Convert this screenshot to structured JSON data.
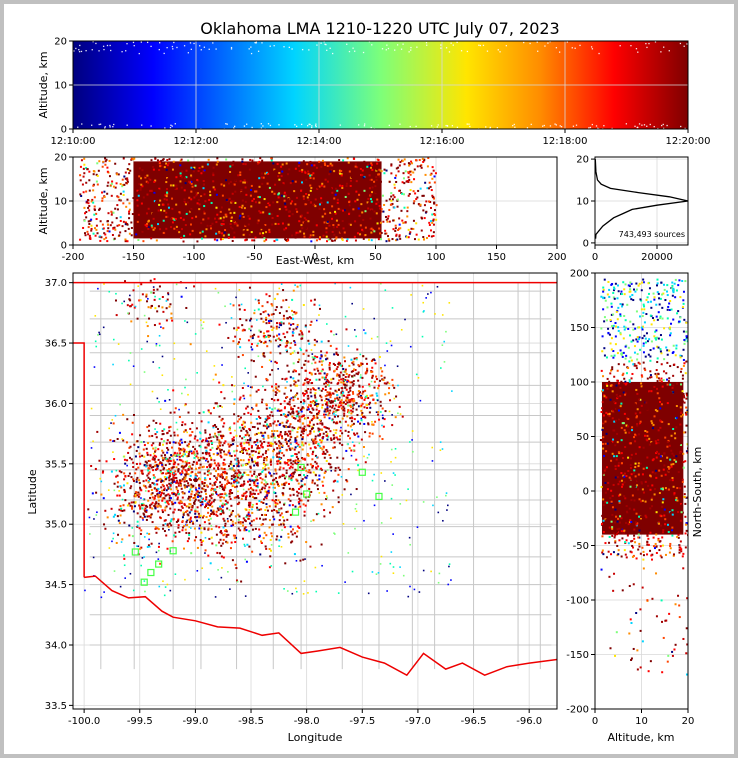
{
  "chart_data": [
    {
      "type": "scatter",
      "panel": "time-altitude",
      "title": "Oklahoma LMA 1210-1220 UTC July 07, 2023",
      "ylabel": "Altitude, km",
      "ylim": [
        0,
        20
      ],
      "x_ticks": [
        "12:10:00",
        "12:12:00",
        "12:14:00",
        "12:16:00",
        "12:18:00",
        "12:20:00"
      ],
      "y_ticks": [
        0,
        10,
        20
      ],
      "color_by": "time",
      "colormap": [
        "#00007f",
        "#0000ff",
        "#00d4ff",
        "#7dff7a",
        "#ffe500",
        "#ff8c00",
        "#ff0000",
        "#7f0000"
      ]
    },
    {
      "type": "scatter",
      "panel": "east-west-altitude",
      "xlabel": "East-West, km",
      "ylabel": "Altitude, km",
      "xlim": [
        -200,
        200
      ],
      "ylim": [
        0,
        20
      ],
      "x_ticks": [
        -200,
        -150,
        -100,
        -50,
        0,
        50,
        100,
        150,
        200
      ],
      "y_ticks": [
        0,
        10,
        20
      ],
      "approx_extent_x": [
        -195,
        100
      ]
    },
    {
      "type": "line",
      "panel": "altitude-histogram",
      "x_ticks": [
        0,
        20000
      ],
      "y_ticks": [
        0,
        10,
        20
      ],
      "annotation": "743,493 sources",
      "points": [
        [
          200,
          1
        ],
        [
          300,
          2
        ],
        [
          2500,
          4
        ],
        [
          6000,
          6
        ],
        [
          9000,
          7
        ],
        [
          12000,
          8
        ],
        [
          20000,
          9
        ],
        [
          30000,
          10
        ],
        [
          24000,
          11
        ],
        [
          14000,
          12
        ],
        [
          5000,
          13
        ],
        [
          2000,
          14
        ],
        [
          800,
          15
        ],
        [
          300,
          17
        ],
        [
          100,
          20
        ]
      ]
    },
    {
      "type": "scatter",
      "panel": "plan-view",
      "xlabel": "Longitude",
      "ylabel": "Latitude",
      "xlim": [
        -100.1,
        -95.75
      ],
      "ylim": [
        33.47,
        37.08
      ],
      "x_ticks": [
        -100.0,
        -99.5,
        -99.0,
        -98.5,
        -98.0,
        -97.5,
        -97.0,
        -96.5,
        -96.0
      ],
      "y_ticks": [
        33.5,
        34.0,
        34.5,
        35.0,
        35.5,
        36.0,
        36.5,
        37.0
      ],
      "stations": [
        [
          -99.4,
          34.6
        ],
        [
          -99.46,
          34.52
        ],
        [
          -99.33,
          34.67
        ],
        [
          -99.2,
          34.78
        ],
        [
          -98.05,
          35.47
        ],
        [
          -98.1,
          35.1
        ],
        [
          -97.35,
          35.23
        ],
        [
          -97.5,
          35.43
        ],
        [
          -99.54,
          34.77
        ],
        [
          -98.0,
          35.25
        ]
      ]
    },
    {
      "type": "scatter",
      "panel": "north-south-altitude",
      "xlabel": "Altitude, km",
      "ylabel": "North-South, km",
      "xlim": [
        0,
        20
      ],
      "ylim": [
        -200,
        200
      ],
      "x_ticks": [
        0,
        10,
        20
      ],
      "y_ticks": [
        -200,
        -150,
        -100,
        -50,
        0,
        50,
        100,
        150,
        200
      ]
    }
  ]
}
